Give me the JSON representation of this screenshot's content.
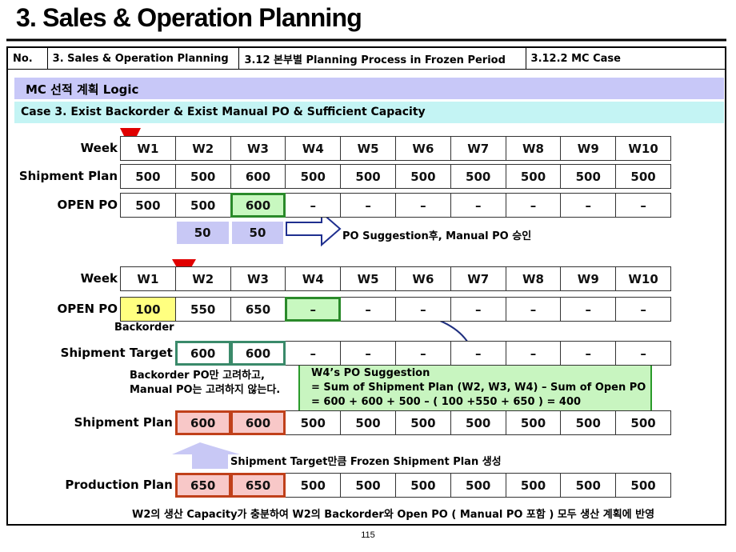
{
  "title": "3. Sales & Operation Planning",
  "header": [
    "No.",
    "3. Sales & Operation Planning",
    "3.12 본부별 Planning Process in Frozen Period",
    "3.12.2 MC Case"
  ],
  "section": "MC 선적 계획 Logic",
  "case": "Case 3. Exist Backorder & Exist Manual PO & Sufficient Capacity",
  "table1": {
    "rows": [
      {
        "label": "Week",
        "cells": [
          "W1",
          "W2",
          "W3",
          "W4",
          "W5",
          "W6",
          "W7",
          "W8",
          "W9",
          "W10"
        ]
      },
      {
        "label": "Shipment Plan",
        "cells": [
          500,
          500,
          600,
          500,
          500,
          500,
          500,
          500,
          500,
          500
        ]
      },
      {
        "label": "OPEN PO",
        "cells": [
          500,
          500,
          600,
          "–",
          "–",
          "–",
          "–",
          "–",
          "–",
          "–"
        ]
      }
    ]
  },
  "suggestion": {
    "cells": [
      50,
      50
    ],
    "note": "PO Suggestion후, Manual PO 승인"
  },
  "table2": {
    "rows": [
      {
        "label": "Week",
        "cells": [
          "W1",
          "W2",
          "W3",
          "W4",
          "W5",
          "W6",
          "W7",
          "W8",
          "W9",
          "W10"
        ]
      },
      {
        "label": "OPEN PO",
        "cells": [
          100,
          550,
          650,
          "–",
          "–",
          "–",
          "–",
          "–",
          "–",
          "–"
        ]
      },
      {
        "label": "Shipment Target",
        "cells": [
          600,
          600,
          "–",
          "–",
          "–",
          "–",
          "–",
          "–",
          "–"
        ]
      },
      {
        "label": "Shipment Plan",
        "cells": [
          600,
          600,
          500,
          500,
          500,
          500,
          500,
          500,
          500
        ]
      },
      {
        "label": "Production Plan",
        "cells": [
          650,
          650,
          500,
          500,
          500,
          500,
          500,
          500,
          500
        ]
      }
    ]
  },
  "backorder_label": "Backorder",
  "note": [
    "Backorder PO만 고려하고,",
    "Manual PO는 고려하지 않는다."
  ],
  "callout": [
    "W4’s PO Suggestion",
    "= Sum of Shipment Plan (W2, W3, W4) – Sum of Open PO",
    "= 600 + 600 + 500 – ( 100 +550 + 650 ) = 400"
  ],
  "arrow_caption": "Shipment Target만큼 Frozen Shipment Plan 생성",
  "footer_note": "W2의 생산 Capacity가 충분하여 W2의 Backorder와 Open PO ( Manual PO 포함 ) 모두 생산 계획에 반영",
  "page_number": "115"
}
